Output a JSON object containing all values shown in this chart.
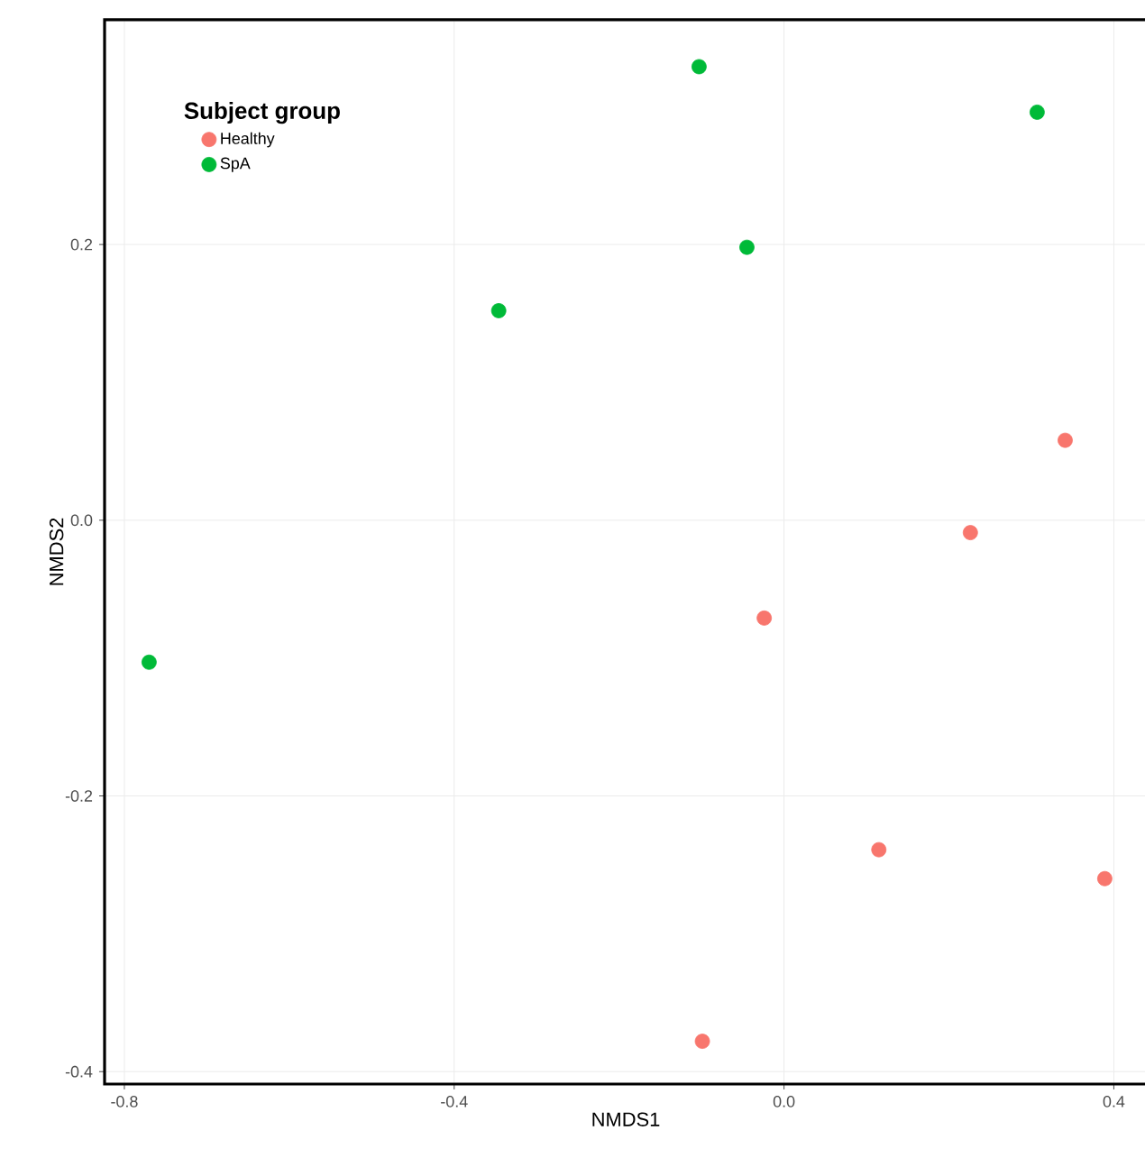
{
  "chart_data": {
    "type": "scatter",
    "xlabel": "NMDS1",
    "ylabel": "NMDS2",
    "legend_title": "Subject group",
    "xlim": [
      -0.824,
      0.44
    ],
    "ylim": [
      -0.409,
      0.363
    ],
    "xticks": [
      {
        "value": -0.8,
        "label": "-0.8"
      },
      {
        "value": -0.4,
        "label": "-0.4"
      },
      {
        "value": 0,
        "label": "0.0"
      },
      {
        "value": 0.4,
        "label": "0.4"
      }
    ],
    "yticks": [
      {
        "value": -0.4,
        "label": "-0.4"
      },
      {
        "value": -0.2,
        "label": "-0.2"
      },
      {
        "value": 0,
        "label": "0.0"
      },
      {
        "value": 0.2,
        "label": "0.2"
      }
    ],
    "grid": true,
    "legend": "top left",
    "marker": "circle",
    "series": [
      {
        "name": "Healthy",
        "color": "#f8766d",
        "x": [
          0.341,
          0.226,
          -0.024,
          0.115,
          0.389,
          -0.099
        ],
        "values": [
          0.058,
          -0.009,
          -0.071,
          -0.239,
          -0.26,
          -0.378
        ]
      },
      {
        "name": "SpA",
        "color": "#00ba38",
        "x": [
          -0.103,
          0.307,
          -0.045,
          -0.346,
          -0.77
        ],
        "values": [
          0.329,
          0.296,
          0.198,
          0.152,
          -0.103
        ]
      }
    ]
  }
}
